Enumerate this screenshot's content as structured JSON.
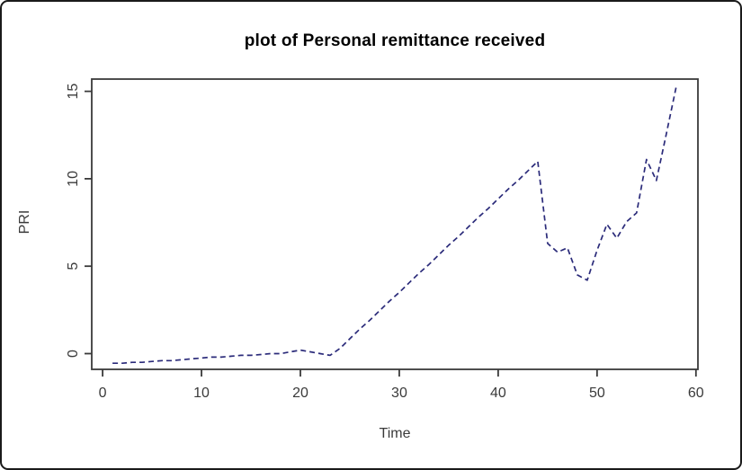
{
  "figure": {
    "title": "plot of Personal remittance received",
    "xlabel": "Time",
    "ylabel": "PRI"
  },
  "chart_data": {
    "type": "line",
    "title": "plot of Personal remittance received",
    "xlabel": "Time",
    "ylabel": "PRI",
    "legend": "none",
    "grid": false,
    "line_style": "dashed",
    "line_color": "#2b2b7a",
    "axis_color": "#3a3a3a",
    "title_color": "#000000",
    "x_ticks": [
      0,
      10,
      20,
      30,
      40,
      50,
      60
    ],
    "y_ticks": [
      0,
      5,
      10,
      15
    ],
    "xlim": [
      -1.1,
      60.2
    ],
    "ylim": [
      -0.9,
      15.7
    ],
    "series": [
      {
        "name": "PRI",
        "x": [
          1,
          2,
          3,
          4,
          5,
          6,
          7,
          8,
          9,
          10,
          11,
          12,
          13,
          14,
          15,
          16,
          17,
          18,
          19,
          20,
          21,
          22,
          23,
          24,
          25,
          26,
          27,
          28,
          29,
          30,
          31,
          32,
          33,
          34,
          35,
          36,
          37,
          38,
          39,
          40,
          41,
          42,
          43,
          44,
          45,
          46,
          47,
          48,
          49,
          50,
          51,
          52,
          53,
          54,
          55,
          56,
          57,
          58
        ],
        "values": [
          -0.55,
          -0.55,
          -0.5,
          -0.5,
          -0.45,
          -0.4,
          -0.4,
          -0.35,
          -0.3,
          -0.25,
          -0.2,
          -0.2,
          -0.15,
          -0.1,
          -0.1,
          -0.05,
          0,
          0,
          0.1,
          0.2,
          0.1,
          0,
          -0.1,
          0.3,
          0.85,
          1.4,
          1.9,
          2.45,
          3.0,
          3.5,
          4.05,
          4.6,
          5.1,
          5.65,
          6.2,
          6.7,
          7.25,
          7.8,
          8.3,
          8.85,
          9.4,
          9.9,
          10.45,
          11.0,
          6.3,
          5.8,
          6.05,
          4.5,
          4.2,
          5.9,
          7.4,
          6.6,
          7.55,
          8.05,
          11.1,
          9.9,
          12.55,
          15.25
        ]
      }
    ]
  }
}
